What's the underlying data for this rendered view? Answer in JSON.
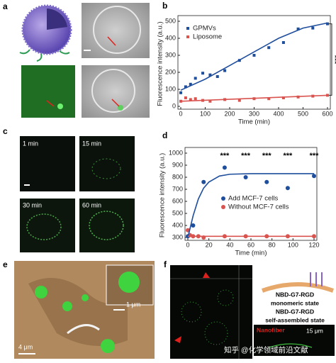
{
  "panel_labels": [
    "a",
    "b",
    "c",
    "d",
    "e",
    "f"
  ],
  "panel_c_times": [
    "1 min",
    "15 min",
    "30 min",
    "60 min"
  ],
  "panel_e_scales": [
    "1 μm",
    "4 μm"
  ],
  "panel_f": {
    "schematic": [
      "NBD-G7-RGD",
      "monomeric state",
      "NBD-G7-RGD",
      "self-assembled state"
    ],
    "inset": "Nanofiber",
    "scale": "15 μm"
  },
  "watermark": "知乎 @化学领域前沿文献",
  "chart_data": [
    {
      "type": "scatter",
      "xlabel": "Time (min)",
      "ylabel": "Fluorescence intensity (a.u.)",
      "xlim": [
        0,
        600
      ],
      "xticks": [
        0,
        100,
        200,
        300,
        400,
        500,
        600
      ],
      "ylim": [
        0,
        500
      ],
      "yticks": [
        0,
        100,
        200,
        300,
        400,
        500
      ],
      "legend": "upper left",
      "annotations": [
        "***"
      ],
      "series": [
        {
          "name": "GPMVs",
          "color": "#1f4e9c",
          "x": [
            0,
            20,
            40,
            60,
            90,
            120,
            150,
            180,
            240,
            300,
            360,
            420,
            480,
            540,
            600
          ],
          "values": [
            80,
            115,
            130,
            165,
            195,
            185,
            175,
            210,
            270,
            300,
            345,
            375,
            455,
            460,
            485
          ]
        },
        {
          "name": "Liposome",
          "color": "#d9534f",
          "x": [
            0,
            20,
            40,
            60,
            90,
            120,
            180,
            240,
            300,
            360,
            420,
            480,
            540,
            600
          ],
          "values": [
            30,
            50,
            40,
            45,
            35,
            30,
            40,
            35,
            45,
            45,
            50,
            55,
            60,
            65
          ]
        },
        {
          "color": "#1f4e9c",
          "x": [
            0,
            100,
            200,
            300,
            400,
            500,
            600
          ],
          "values": [
            95,
            160,
            240,
            320,
            400,
            460,
            490
          ]
        },
        {
          "color": "#d9534f",
          "x": [
            0,
            600
          ],
          "values": [
            30,
            65
          ]
        }
      ]
    },
    {
      "type": "scatter",
      "xlabel": "Time (min)",
      "ylabel": "Fluorescence intensity (a.u.)",
      "xlim": [
        0,
        120
      ],
      "xticks": [
        0,
        20,
        40,
        60,
        80,
        100,
        120
      ],
      "ylim": [
        300,
        1000
      ],
      "yticks": [
        300,
        400,
        500,
        600,
        700,
        800,
        900,
        1000
      ],
      "legend": "center",
      "annotations": [
        "***",
        "***",
        "***",
        "***",
        "***"
      ],
      "series": [
        {
          "name": "Add MCF-7 cells",
          "color": "#1f4e9c",
          "x": [
            0,
            5,
            15,
            35,
            55,
            75,
            95,
            120
          ],
          "values": [
            310,
            400,
            760,
            880,
            800,
            760,
            710,
            810
          ]
        },
        {
          "name": "Without  MCF-7 cells",
          "color": "#d9534f",
          "x": [
            0,
            2,
            5,
            10,
            15,
            35,
            55,
            75,
            95,
            120
          ],
          "values": [
            360,
            320,
            310,
            310,
            300,
            310,
            310,
            310,
            310,
            310
          ]
        },
        {
          "color": "#1f4e9c",
          "x": [
            0,
            5,
            10,
            15,
            20,
            30,
            40,
            60,
            120
          ],
          "values": [
            300,
            480,
            620,
            710,
            760,
            810,
            825,
            830,
            830
          ]
        },
        {
          "color": "#d9534f",
          "x": [
            0,
            120
          ],
          "values": [
            310,
            310
          ]
        }
      ]
    }
  ]
}
